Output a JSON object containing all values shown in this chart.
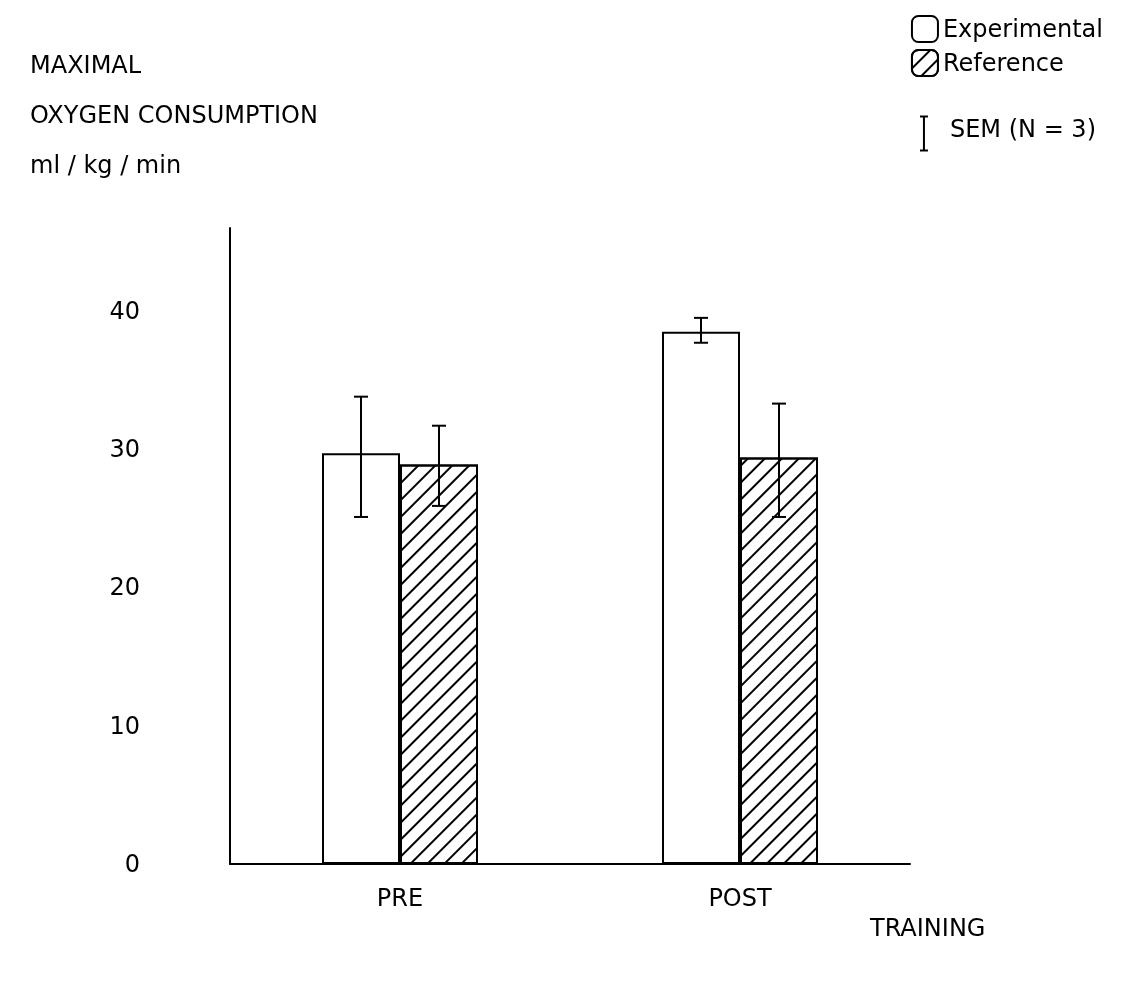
{
  "chart_data": {
    "type": "bar",
    "ylabel": "MAXIMAL\nOXYGEN CONSUMPTION\nml / kg / min",
    "xlabel": "TRAINING",
    "categories": [
      "PRE",
      "POST"
    ],
    "series": [
      {
        "name": "Experimental",
        "color": "#ffffff",
        "values": [
          29.7,
          38.5
        ],
        "errors": [
          [
            25.1,
            33.8
          ],
          [
            37.7,
            39.5
          ]
        ]
      },
      {
        "name": "Reference",
        "color": "#ffffff",
        "values": [
          28.9,
          29.4
        ],
        "errors": [
          [
            25.9,
            31.7
          ],
          [
            25.1,
            33.3
          ]
        ]
      }
    ],
    "ylim": [
      0,
      46
    ],
    "yticks": [
      0,
      10,
      20,
      30,
      40
    ],
    "grid": false,
    "legend": "top right",
    "annotations": [
      "SEM (N = 3)"
    ]
  }
}
